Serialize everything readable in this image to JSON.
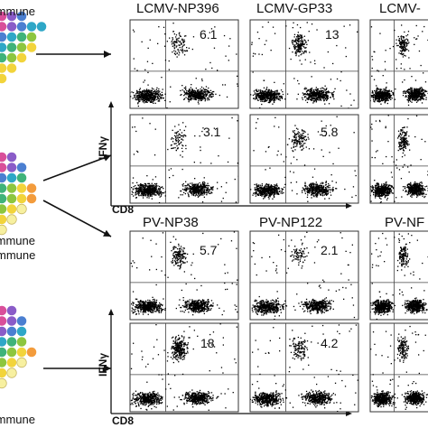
{
  "colors": {
    "palette": [
      "#d94f9a",
      "#8a5cc8",
      "#4b7fd1",
      "#2ea7c7",
      "#3fb37a",
      "#8dc63f",
      "#f2d43b",
      "#f39c3c",
      "#e8654e",
      "#f7f0a0"
    ],
    "ink": "#111111",
    "dot": "#000000",
    "arrow": "#111111",
    "panel_border": "#333333"
  },
  "left_groups": [
    {
      "label": "Immune",
      "rows": [
        [
          0,
          1,
          2
        ],
        [
          0,
          1,
          2,
          3,
          3
        ],
        [
          2,
          3,
          4,
          5
        ],
        [
          3,
          4,
          5,
          6
        ],
        [
          4,
          5,
          6
        ],
        [
          6,
          6
        ],
        [
          6
        ]
      ]
    },
    {
      "label": "Immune",
      "rows": [
        [
          0,
          1
        ],
        [
          0,
          1,
          2
        ],
        [
          2,
          3,
          4
        ],
        [
          4,
          5,
          6,
          7
        ],
        [
          4,
          5,
          6,
          7
        ],
        [
          5,
          6,
          9
        ],
        [
          6,
          9
        ],
        [
          9
        ]
      ]
    },
    {
      "label": "Immune",
      "rows": [
        [
          0,
          1
        ],
        [
          0,
          1,
          2
        ],
        [
          1,
          2,
          3
        ],
        [
          3,
          4,
          5
        ],
        [
          4,
          5,
          6,
          7
        ],
        [
          5,
          6,
          9
        ],
        [
          6,
          9
        ],
        [
          9
        ]
      ]
    }
  ],
  "groups_extra": {
    "middle_label_prefix": "Immune",
    "middle_second_label": "mmune"
  },
  "top_section": {
    "columns": [
      "LCMV-NP396",
      "LCMV-GP33",
      "LCMV-"
    ],
    "y_axis_label": "IFNγ",
    "x_axis_label": "CD8",
    "rows": [
      {
        "values": [
          "6.1",
          "13",
          ""
        ]
      },
      {
        "values": [
          "3.1",
          "5.8",
          ""
        ]
      }
    ]
  },
  "bottom_section": {
    "columns": [
      "PV-NP38",
      "PV-NP122",
      "PV-NF"
    ],
    "y_axis_label": "IFNγ",
    "x_axis_label": "CD8",
    "rows": [
      {
        "values": [
          "5.7",
          "2.1",
          ""
        ]
      },
      {
        "values": [
          "18",
          "4.2",
          ""
        ]
      }
    ]
  }
}
